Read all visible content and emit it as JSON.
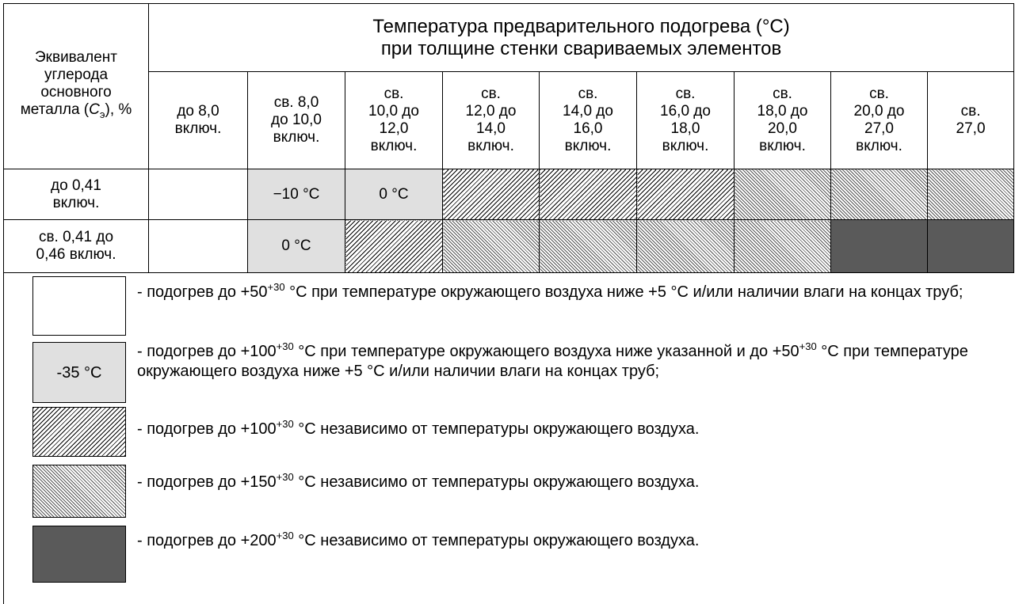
{
  "table": {
    "carbon_header": {
      "before": "Эквивалент углерода основного металла (",
      "symbol": "C",
      "subscript": "э",
      "after": "), %"
    },
    "title_lines": [
      "Температура предварительного подогрева (°C)",
      "при толщине стенки свариваемых элементов"
    ],
    "columns": [
      [
        "до 8,0",
        "включ."
      ],
      [
        "св. 8,0",
        "до 10,0",
        "включ."
      ],
      [
        "св.",
        "10,0 до",
        "12,0",
        "включ."
      ],
      [
        "св.",
        "12,0 до",
        "14,0",
        "включ."
      ],
      [
        "св.",
        "14,0 до",
        "16,0",
        "включ."
      ],
      [
        "св.",
        "16,0 до",
        "18,0",
        "включ."
      ],
      [
        "св.",
        "18,0 до",
        "20,0",
        "включ."
      ],
      [
        "св.",
        "20,0 до",
        "27,0",
        "включ."
      ],
      [
        "св.",
        "27,0"
      ]
    ],
    "rows": [
      {
        "label": [
          "до 0,41",
          "включ."
        ],
        "cells": [
          {
            "pattern": "white"
          },
          {
            "pattern": "gray",
            "text": "−10 °C"
          },
          {
            "pattern": "gray",
            "text": "0 °C"
          },
          {
            "pattern": "hatch100"
          },
          {
            "pattern": "hatch100"
          },
          {
            "pattern": "hatch100"
          },
          {
            "pattern": "hatch150"
          },
          {
            "pattern": "hatch150"
          },
          {
            "pattern": "hatch150"
          }
        ]
      },
      {
        "label": [
          "св. 0,41 до",
          "0,46 включ."
        ],
        "cells": [
          {
            "pattern": "white"
          },
          {
            "pattern": "gray",
            "text": "0 °C"
          },
          {
            "pattern": "hatch100"
          },
          {
            "pattern": "hatch150"
          },
          {
            "pattern": "hatch150"
          },
          {
            "pattern": "hatch150"
          },
          {
            "pattern": "hatch150"
          },
          {
            "pattern": "dark"
          },
          {
            "pattern": "dark"
          }
        ]
      }
    ]
  },
  "legend": {
    "items": [
      {
        "pattern": "white",
        "parts": [
          "- подогрев до +50",
          "+30",
          " °C при температуре окружающего воздуха ниже +5 °C и/или наличии влаги на концах труб;"
        ]
      },
      {
        "pattern": "gray",
        "swatch_text": "-35 °C",
        "parts": [
          "- подогрев до +100",
          "+30",
          " °C при температуре окружающего воздуха ниже указанной и до +50",
          "+30",
          " °C при температуре окружающего воздуха ниже +5 °C и/или наличии влаги на концах труб;"
        ]
      },
      {
        "pattern": "hatch100",
        "parts": [
          "- подогрев до +100",
          "+30",
          " °C независимо от температуры окружающего воздуха."
        ]
      },
      {
        "pattern": "hatch150",
        "parts": [
          "- подогрев до +150",
          "+30",
          " °C независимо от температуры окружающего воздуха."
        ]
      },
      {
        "pattern": "dark",
        "parts": [
          "- подогрев до +200",
          "+30",
          " °C независимо от температуры окружающего воздуха."
        ]
      }
    ]
  }
}
